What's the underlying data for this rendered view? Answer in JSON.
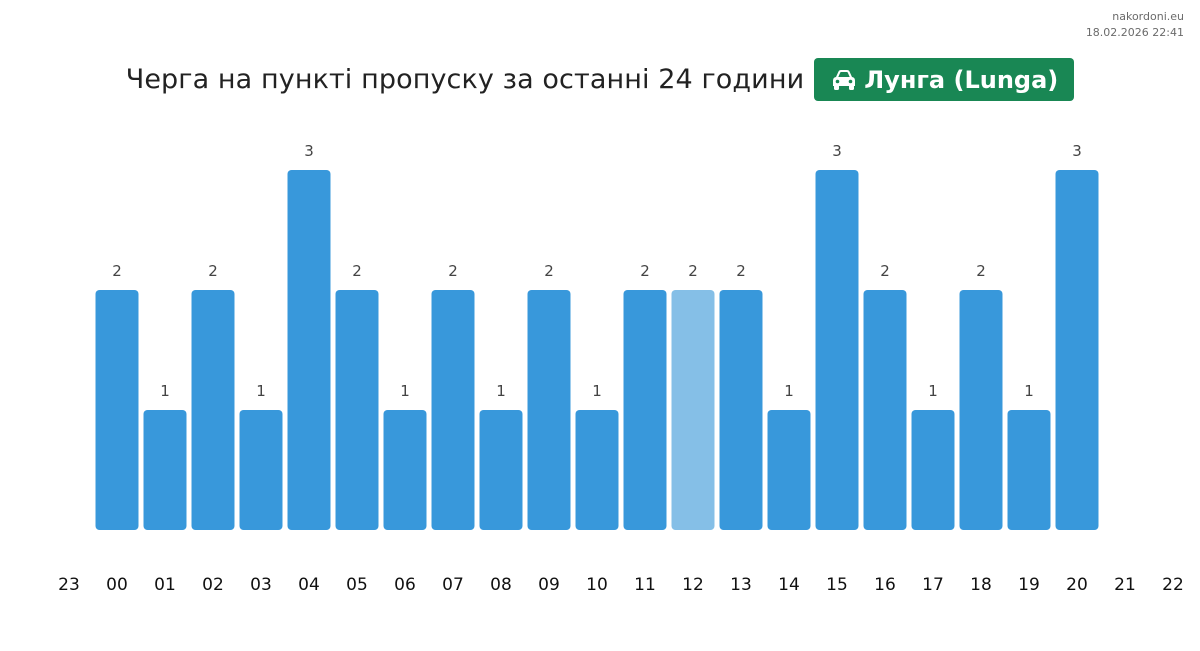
{
  "watermark": {
    "site": "nakordoni.eu",
    "datetime": "18.02.2026 22:41"
  },
  "header": {
    "title": "Черга на пункті пропуску за останні 24 години",
    "badge_label": "Лунга (Lunga)",
    "badge_icon": "car-icon",
    "badge_color": "#198754"
  },
  "chart_data": {
    "type": "bar",
    "categories": [
      "23",
      "00",
      "01",
      "02",
      "03",
      "04",
      "05",
      "06",
      "07",
      "08",
      "09",
      "10",
      "11",
      "12",
      "13",
      "14",
      "15",
      "16",
      "17",
      "18",
      "19",
      "20",
      "21",
      "22"
    ],
    "values": [
      null,
      2,
      1,
      2,
      1,
      3,
      2,
      1,
      2,
      1,
      2,
      1,
      2,
      2,
      2,
      1,
      3,
      2,
      1,
      2,
      1,
      3,
      null,
      null
    ],
    "highlight_index": 13,
    "bar_color": "#3898db",
    "highlight_color": "#85bfe7",
    "ylim": [
      0,
      3
    ],
    "grid": false,
    "title": "",
    "xlabel": "",
    "ylabel": ""
  }
}
